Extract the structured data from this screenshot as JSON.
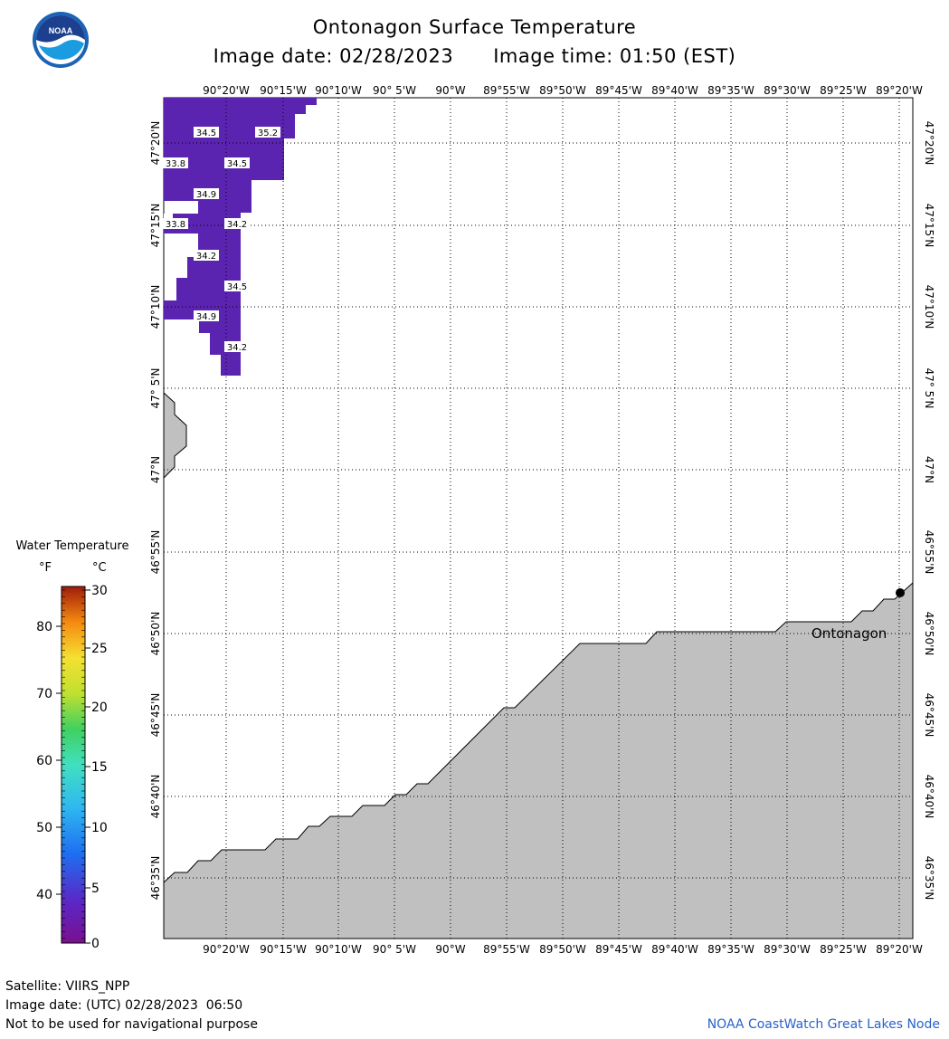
{
  "header": {
    "title": "Ontonagon Surface Temperature",
    "image_date": "Image date: 02/28/2023",
    "image_time": "Image time: 01:50 (EST)"
  },
  "logo": {
    "text": "NOAA",
    "icon": "noaa-logo-icon"
  },
  "map": {
    "lon_labels": [
      "90°20'W",
      "90°15'W",
      "90°10'W",
      "90° 5'W",
      "90°W",
      "89°55'W",
      "89°50'W",
      "89°45'W",
      "89°40'W",
      "89°35'W",
      "89°30'W",
      "89°25'W",
      "89°20'W"
    ],
    "lat_labels": [
      "47°20'N",
      "47°15'N",
      "47°10'N",
      "47° 5'N",
      "47°N",
      "46°55'N",
      "46°50'N",
      "46°45'N",
      "46°40'N",
      "46°35'N"
    ],
    "temp_labels": [
      "34.5",
      "35.2",
      "33.8",
      "34.5",
      "34.9",
      "33.8",
      "34.2",
      "34.2",
      "34.5",
      "34.9",
      "34.2"
    ],
    "place_label": "Ontonagon",
    "colors": {
      "water_data": "#5a24b0",
      "land": "#c0c0c0",
      "grid": "#000000"
    }
  },
  "legend": {
    "title": "Water Temperature",
    "unit_f": "°F",
    "unit_c": "°C",
    "f_ticks": [
      "80",
      "70",
      "60",
      "50",
      "40"
    ],
    "c_ticks": [
      "30",
      "25",
      "20",
      "15",
      "10",
      "5",
      "0"
    ]
  },
  "footer": {
    "satellite": "Satellite: VIIRS_NPP",
    "utc_date": "Image date: (UTC) 02/28/2023  06:50",
    "disclaimer": "Not to be used for navigational purpose",
    "credit": "NOAA CoastWatch Great Lakes Node"
  }
}
